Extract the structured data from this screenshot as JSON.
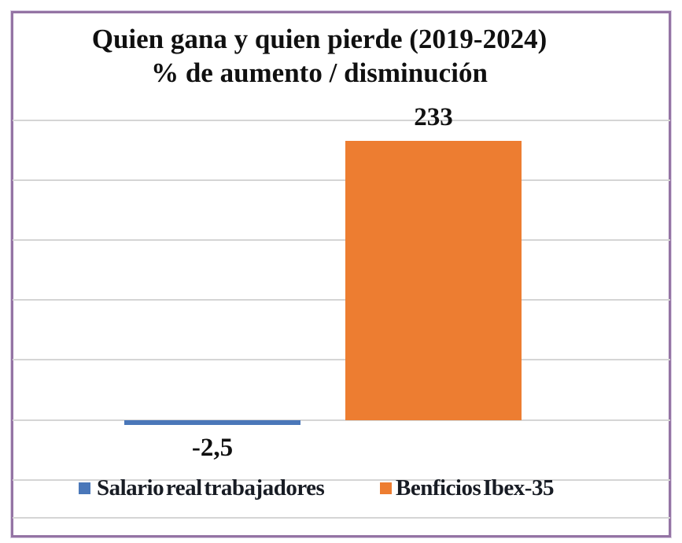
{
  "chart_data": {
    "type": "bar",
    "title": "Quien gana y quien pierde (2019-2024)",
    "subtitle": "% de aumento / disminución",
    "categories": [
      "Salario real trabajadores",
      "Benficios Ibex-35"
    ],
    "values": [
      -2.5,
      233
    ],
    "data_labels": [
      "-2,5",
      "233"
    ],
    "series_colors": [
      "#4A77B9",
      "#ED7D31"
    ],
    "ylim": [
      -50,
      250
    ],
    "grid_interval": 50,
    "grid": true,
    "y_axis_labels_visible": false,
    "legend_position": "bottom"
  },
  "legend": {
    "items": [
      {
        "label": "Salario real trabajadores",
        "color": "#4A77B9"
      },
      {
        "label": "Benficios Ibex-35",
        "color": "#ED7D31"
      }
    ]
  },
  "frame": {
    "border_color": "#9474A4",
    "background": "#FFFFFF",
    "gridline_color": "#D5D5D5"
  }
}
